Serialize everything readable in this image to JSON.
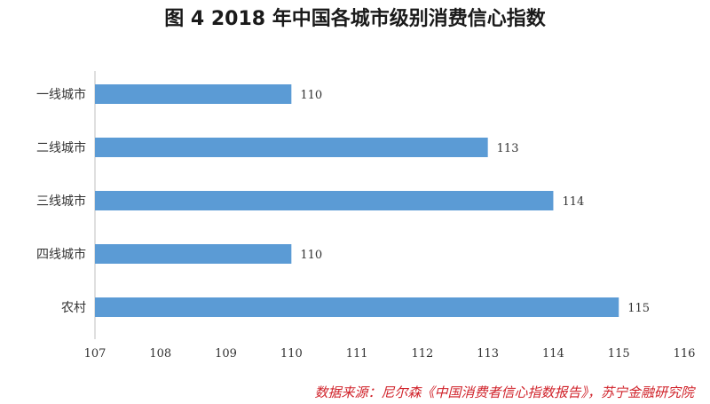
{
  "chart_data": {
    "type": "bar",
    "orientation": "horizontal",
    "title": "图 4    2018 年中国各城市级别消费信心指数",
    "categories": [
      "一线城市",
      "二线城市",
      "三线城市",
      "四线城市",
      "农村"
    ],
    "values": [
      110,
      113,
      114,
      110,
      115
    ],
    "xlim": [
      107,
      116
    ],
    "xticks": [
      107,
      108,
      109,
      110,
      111,
      112,
      113,
      114,
      115,
      116
    ],
    "bar_color": "#5b9bd5",
    "grid": false,
    "data_labels": true,
    "xlabel": "",
    "ylabel": ""
  },
  "source": "数据来源：尼尔森《中国消费者信心指数报告》，苏宁金融研究院",
  "source_color": "#d0222a"
}
